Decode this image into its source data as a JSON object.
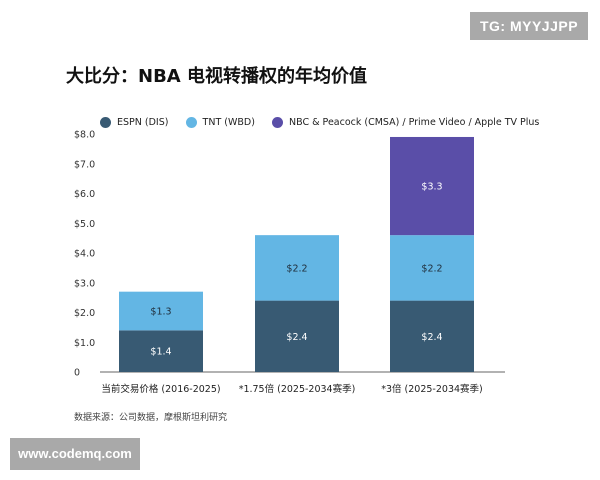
{
  "watermarks": {
    "top": "TG: MYYJJPP",
    "bottom": "www.codemq.com"
  },
  "chart_data": {
    "type": "bar",
    "stacked": true,
    "title": "大比分：NBA 电视转播权的年均价值",
    "categories": [
      "当前交易价格 (2016-2025)",
      "*1.75倍 (2025-2034赛季)",
      "*3倍 (2025-2034赛季)"
    ],
    "series": [
      {
        "name": "ESPN (DIS)",
        "color": "#385a73",
        "values": [
          1.4,
          2.4,
          2.4
        ],
        "labels": [
          "$1.4",
          "$2.4",
          "$2.4"
        ]
      },
      {
        "name": "TNT (WBD)",
        "color": "#63b6e4",
        "values": [
          1.3,
          2.2,
          2.2
        ],
        "labels": [
          "$1.3",
          "$2.2",
          "$2.2"
        ]
      },
      {
        "name": "NBC & Peacock (CMSA) / Prime Video / Apple TV Plus",
        "color": "#5a4ea8",
        "values": [
          0,
          0,
          3.3
        ],
        "labels": [
          "",
          "",
          "$3.3"
        ]
      }
    ],
    "ylim": [
      0,
      8
    ],
    "yticks": [
      "0",
      "$1.0",
      "$2.0",
      "$3.0",
      "$4.0",
      "$5.0",
      "$6.0",
      "$7.0",
      "$8.0"
    ],
    "grid": false
  },
  "source": "数据来源：公司数据，摩根斯坦利研究"
}
